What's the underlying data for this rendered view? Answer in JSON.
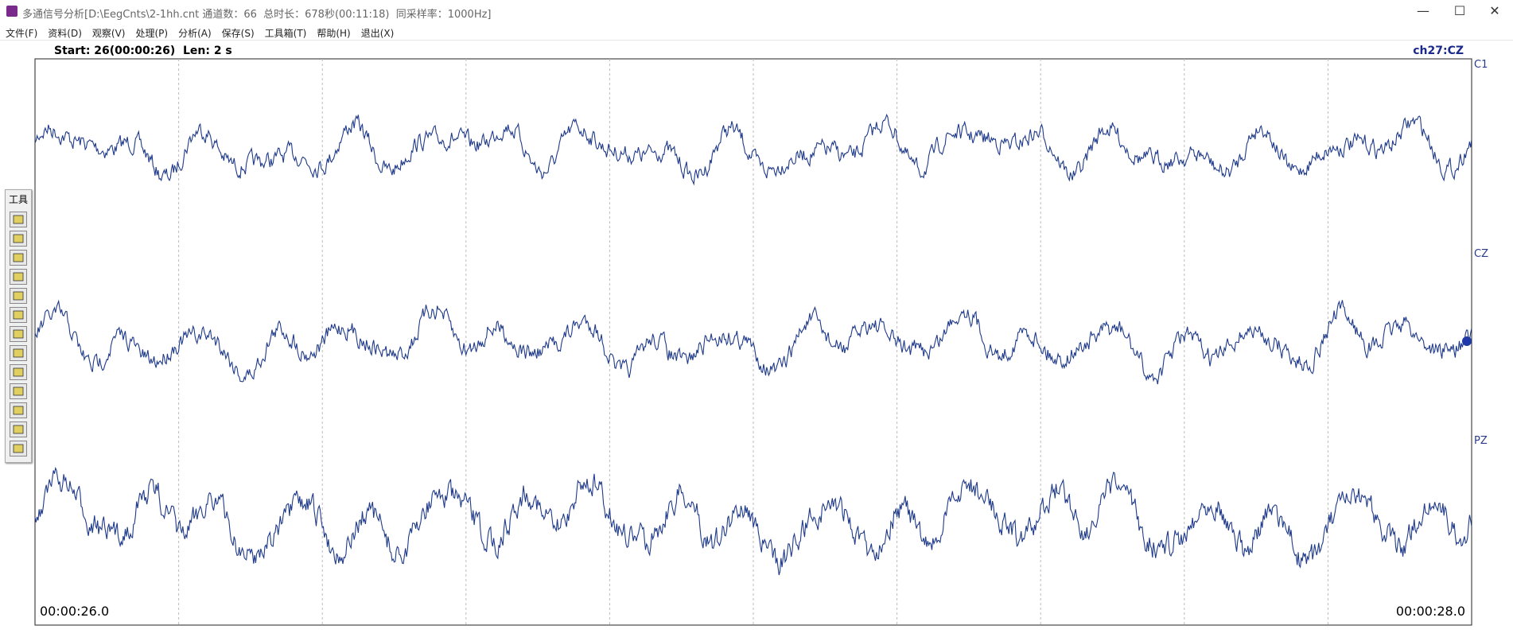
{
  "window": {
    "title": "多通信号分析[D:\\EegCnts\\2-1hh.cnt 通道数：66  总时长：678秒(00:11:18)  同采样率：1000Hz]",
    "menu": [
      "文件(F)",
      "资料(D)",
      "观察(V)",
      "处理(P)",
      "分析(A)",
      "保存(S)",
      "工具箱(T)",
      "帮助(H)",
      "退出(X)"
    ]
  },
  "viewer": {
    "range": "Start: 26(00:00:26)  Len: 2 s",
    "selected_channel": "ch27:CZ",
    "channels": [
      "C1",
      "CZ",
      "PZ"
    ],
    "time_start": "00:00:26.0",
    "time_end": "00:00:28.0"
  },
  "toolbar": {
    "title": "工具"
  }
}
